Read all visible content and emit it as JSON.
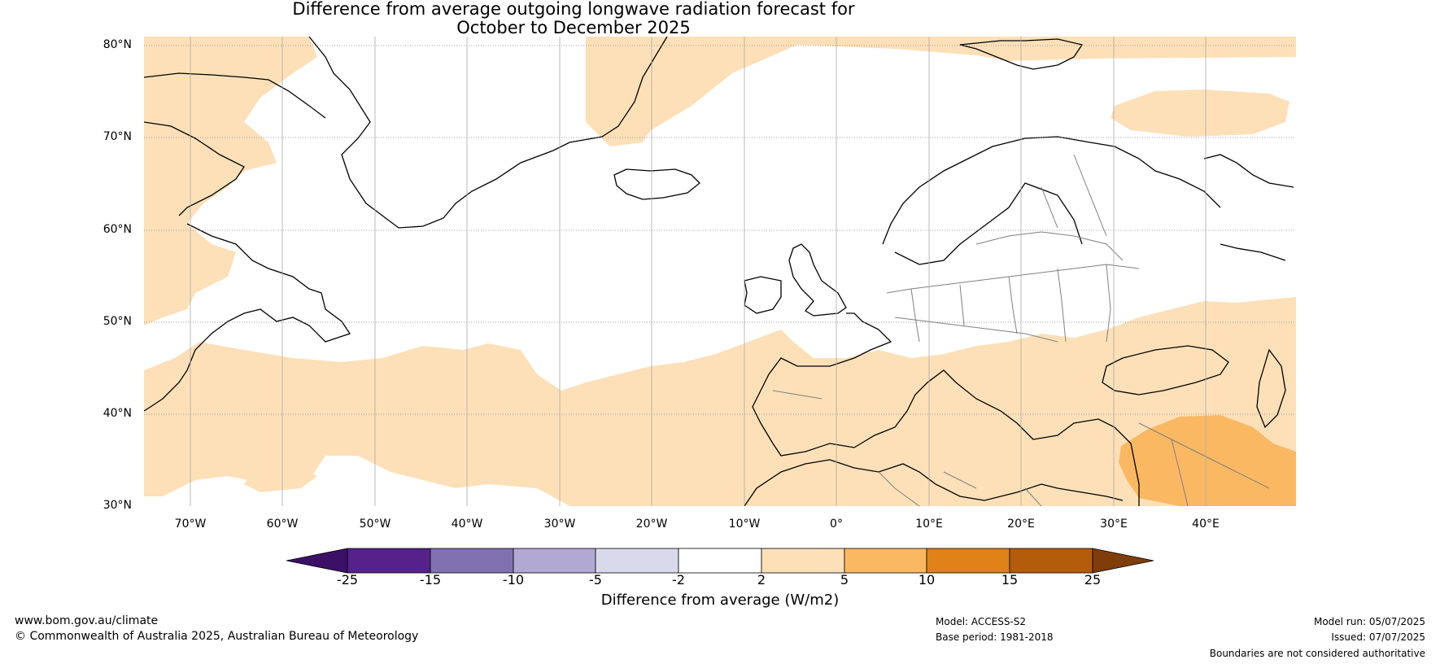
{
  "title_line1": "Difference from average outgoing longwave radiation forecast for",
  "title_line2": "October to December 2025",
  "lat_labels": [
    "80°N",
    "70°N",
    "60°N",
    "50°N",
    "40°N",
    "30°N"
  ],
  "lon_labels": [
    "70°W",
    "60°W",
    "50°W",
    "40°W",
    "30°W",
    "20°W",
    "10°W",
    "0°",
    "10°E",
    "20°E",
    "30°E",
    "40°E"
  ],
  "legend": {
    "label": "Difference from average (W/m2)",
    "ticks": [
      "-25",
      "-15",
      "-10",
      "-5",
      "-2",
      "2",
      "5",
      "10",
      "15",
      "25"
    ],
    "colors": [
      "#3d1068",
      "#54228a",
      "#8072b0",
      "#b2a8d4",
      "#dad9ec",
      "#ffffff",
      "#fde0b8",
      "#fbb862",
      "#e08218",
      "#b35c0b",
      "#7f3d0a"
    ]
  },
  "colors": {
    "anom_2_5": "#fde0b8",
    "anom_5_10": "#fbb862",
    "coast": "#000000",
    "border": "#808080",
    "grid": "#888888"
  },
  "footer": {
    "website": "www.bom.gov.au/climate",
    "copyright": "© Commonwealth of Australia 2025, Australian Bureau of Meteorology",
    "model": "Model: ACCESS-S2",
    "base_period": "Base period: 1981-2018",
    "model_run": "Model run: 05/07/2025",
    "issued": "Issued: 07/07/2025",
    "disclaimer": "Boundaries are not considered authoritative"
  }
}
